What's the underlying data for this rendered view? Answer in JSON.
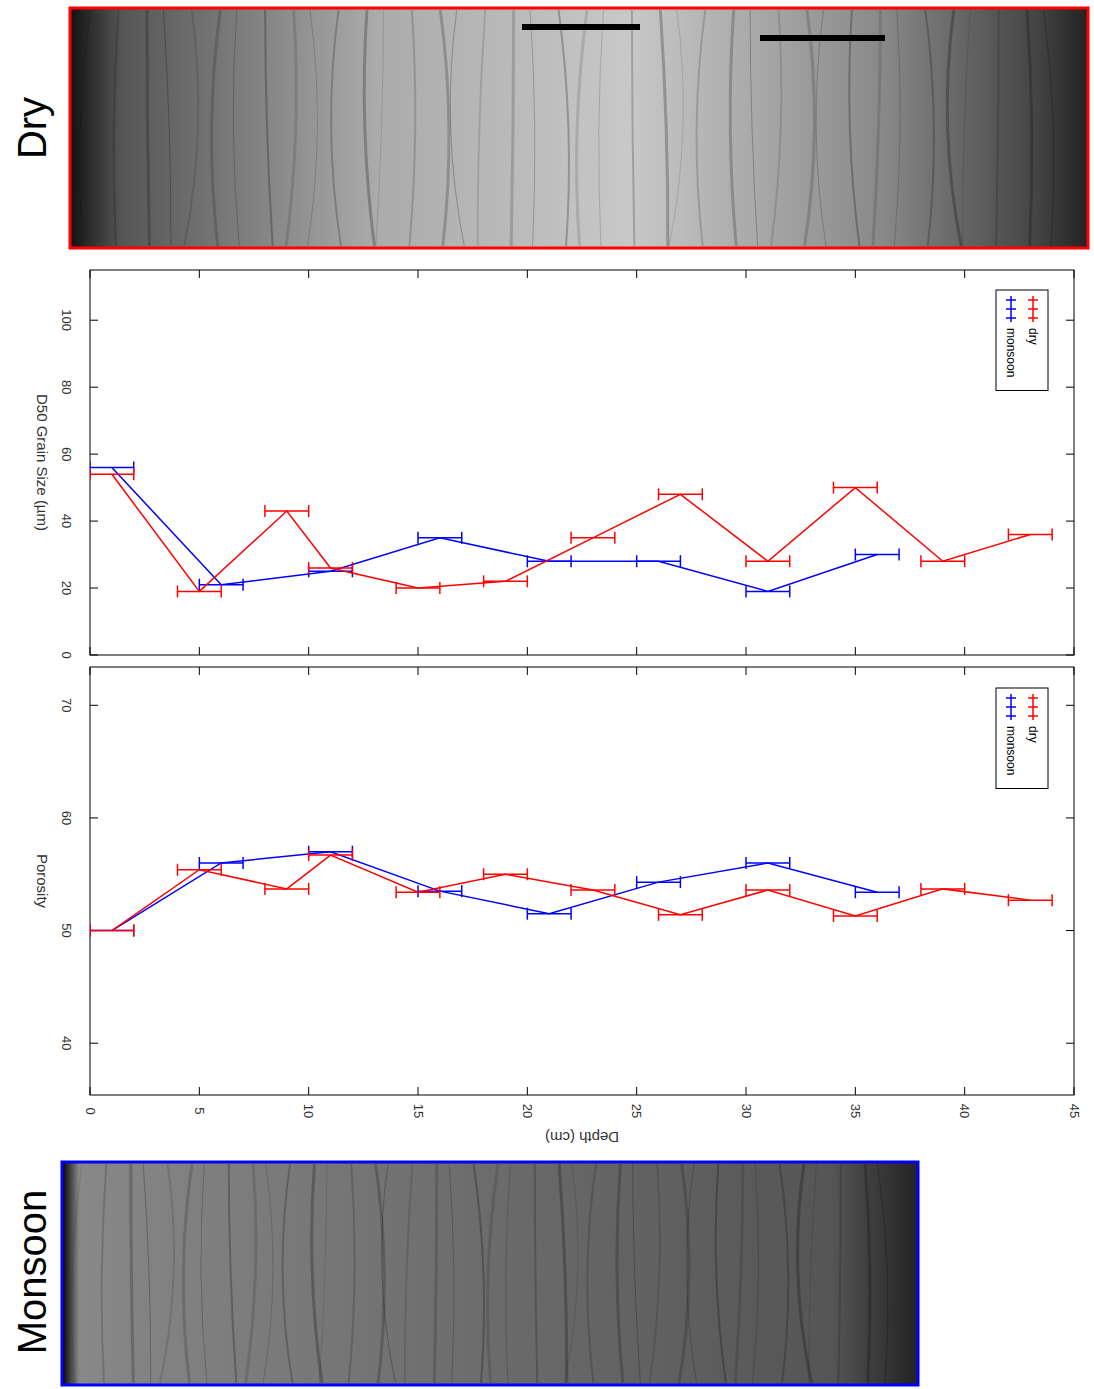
{
  "chart_data": [
    {
      "type": "line",
      "y_label": "D50 Grain Size (µm)",
      "xlim": [
        0,
        45
      ],
      "xticks": [
        0,
        5,
        10,
        15,
        20,
        25,
        30,
        35,
        40,
        45
      ],
      "ylim": [
        0,
        115
      ],
      "yticks": [
        0,
        20,
        40,
        60,
        80,
        100
      ],
      "legend": "upper right",
      "marker": "error_bar",
      "series": [
        {
          "name": "monsoon",
          "color": "#0000ff",
          "x": [
            1,
            6,
            11,
            16,
            21,
            26,
            31,
            36
          ],
          "values": [
            56,
            21,
            25,
            35,
            28,
            28,
            19,
            30
          ],
          "x_error": [
            1,
            1,
            1,
            1,
            1,
            1,
            1,
            1
          ]
        },
        {
          "name": "dry",
          "color": "#ff0000",
          "x": [
            1,
            5,
            9,
            11,
            15,
            19,
            23,
            27,
            31,
            35,
            39,
            43
          ],
          "values": [
            54,
            19,
            43,
            26,
            20,
            22,
            35,
            48,
            28,
            50,
            28,
            36
          ],
          "x_error": [
            1,
            1,
            1,
            1,
            1,
            1,
            1,
            1,
            1,
            1,
            1,
            1
          ]
        }
      ]
    },
    {
      "type": "line",
      "x_label": "Depth (cm)",
      "y_label": "Porosity",
      "xlim": [
        0,
        45
      ],
      "xticks": [
        0,
        5,
        10,
        15,
        20,
        25,
        30,
        35,
        40,
        45
      ],
      "ylim": [
        35.4,
        73.4
      ],
      "yticks": [
        40,
        50,
        60,
        70
      ],
      "legend": "upper right",
      "marker": "error_bar",
      "series": [
        {
          "name": "monsoon",
          "color": "#0000ff",
          "x": [
            1,
            6,
            11,
            16,
            21,
            26,
            31,
            36
          ],
          "values": [
            50,
            56,
            57,
            53.5,
            51.5,
            54.3,
            56,
            53.4
          ],
          "x_error": [
            1,
            1,
            1,
            1,
            1,
            1,
            1,
            1
          ]
        },
        {
          "name": "dry",
          "color": "#ff0000",
          "x": [
            1,
            5,
            9,
            11,
            15,
            19,
            23,
            27,
            31,
            35,
            39,
            43
          ],
          "values": [
            50,
            55.4,
            53.7,
            56.7,
            53.4,
            55,
            53.6,
            51.4,
            53.6,
            51.3,
            53.7,
            52.7
          ],
          "x_error": [
            1,
            1,
            1,
            1,
            1,
            1,
            1,
            1,
            1,
            1,
            1,
            1
          ]
        }
      ]
    }
  ],
  "images": [
    {
      "label": "Dry",
      "color": "#ff0000"
    },
    {
      "label": "Monsoon",
      "color": "#0000ff"
    }
  ]
}
